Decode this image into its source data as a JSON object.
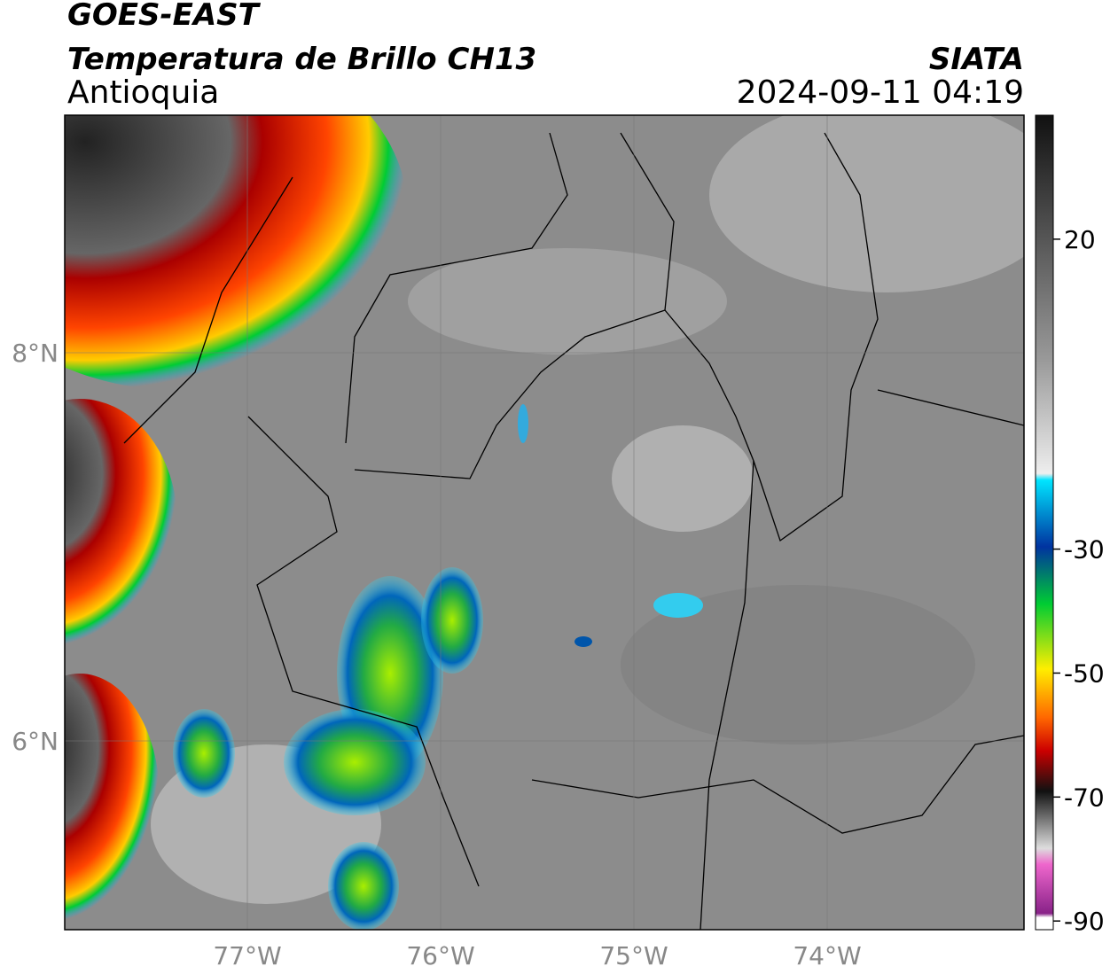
{
  "header": {
    "satellite": "GOES-EAST",
    "title": "Temperatura de Brillo CH13",
    "region": "Antioquia",
    "source": "SIATA",
    "datetime": "2024-09-11 04:19"
  },
  "map": {
    "lat_labels": [
      "8°N",
      "6°N"
    ],
    "lon_labels": [
      "77°W",
      "76°W",
      "75°W",
      "74°W"
    ]
  },
  "colorbar": {
    "lim": [
      -91.4,
      40
    ],
    "ticks": [
      20,
      -30,
      -50,
      -70,
      -90
    ]
  }
}
